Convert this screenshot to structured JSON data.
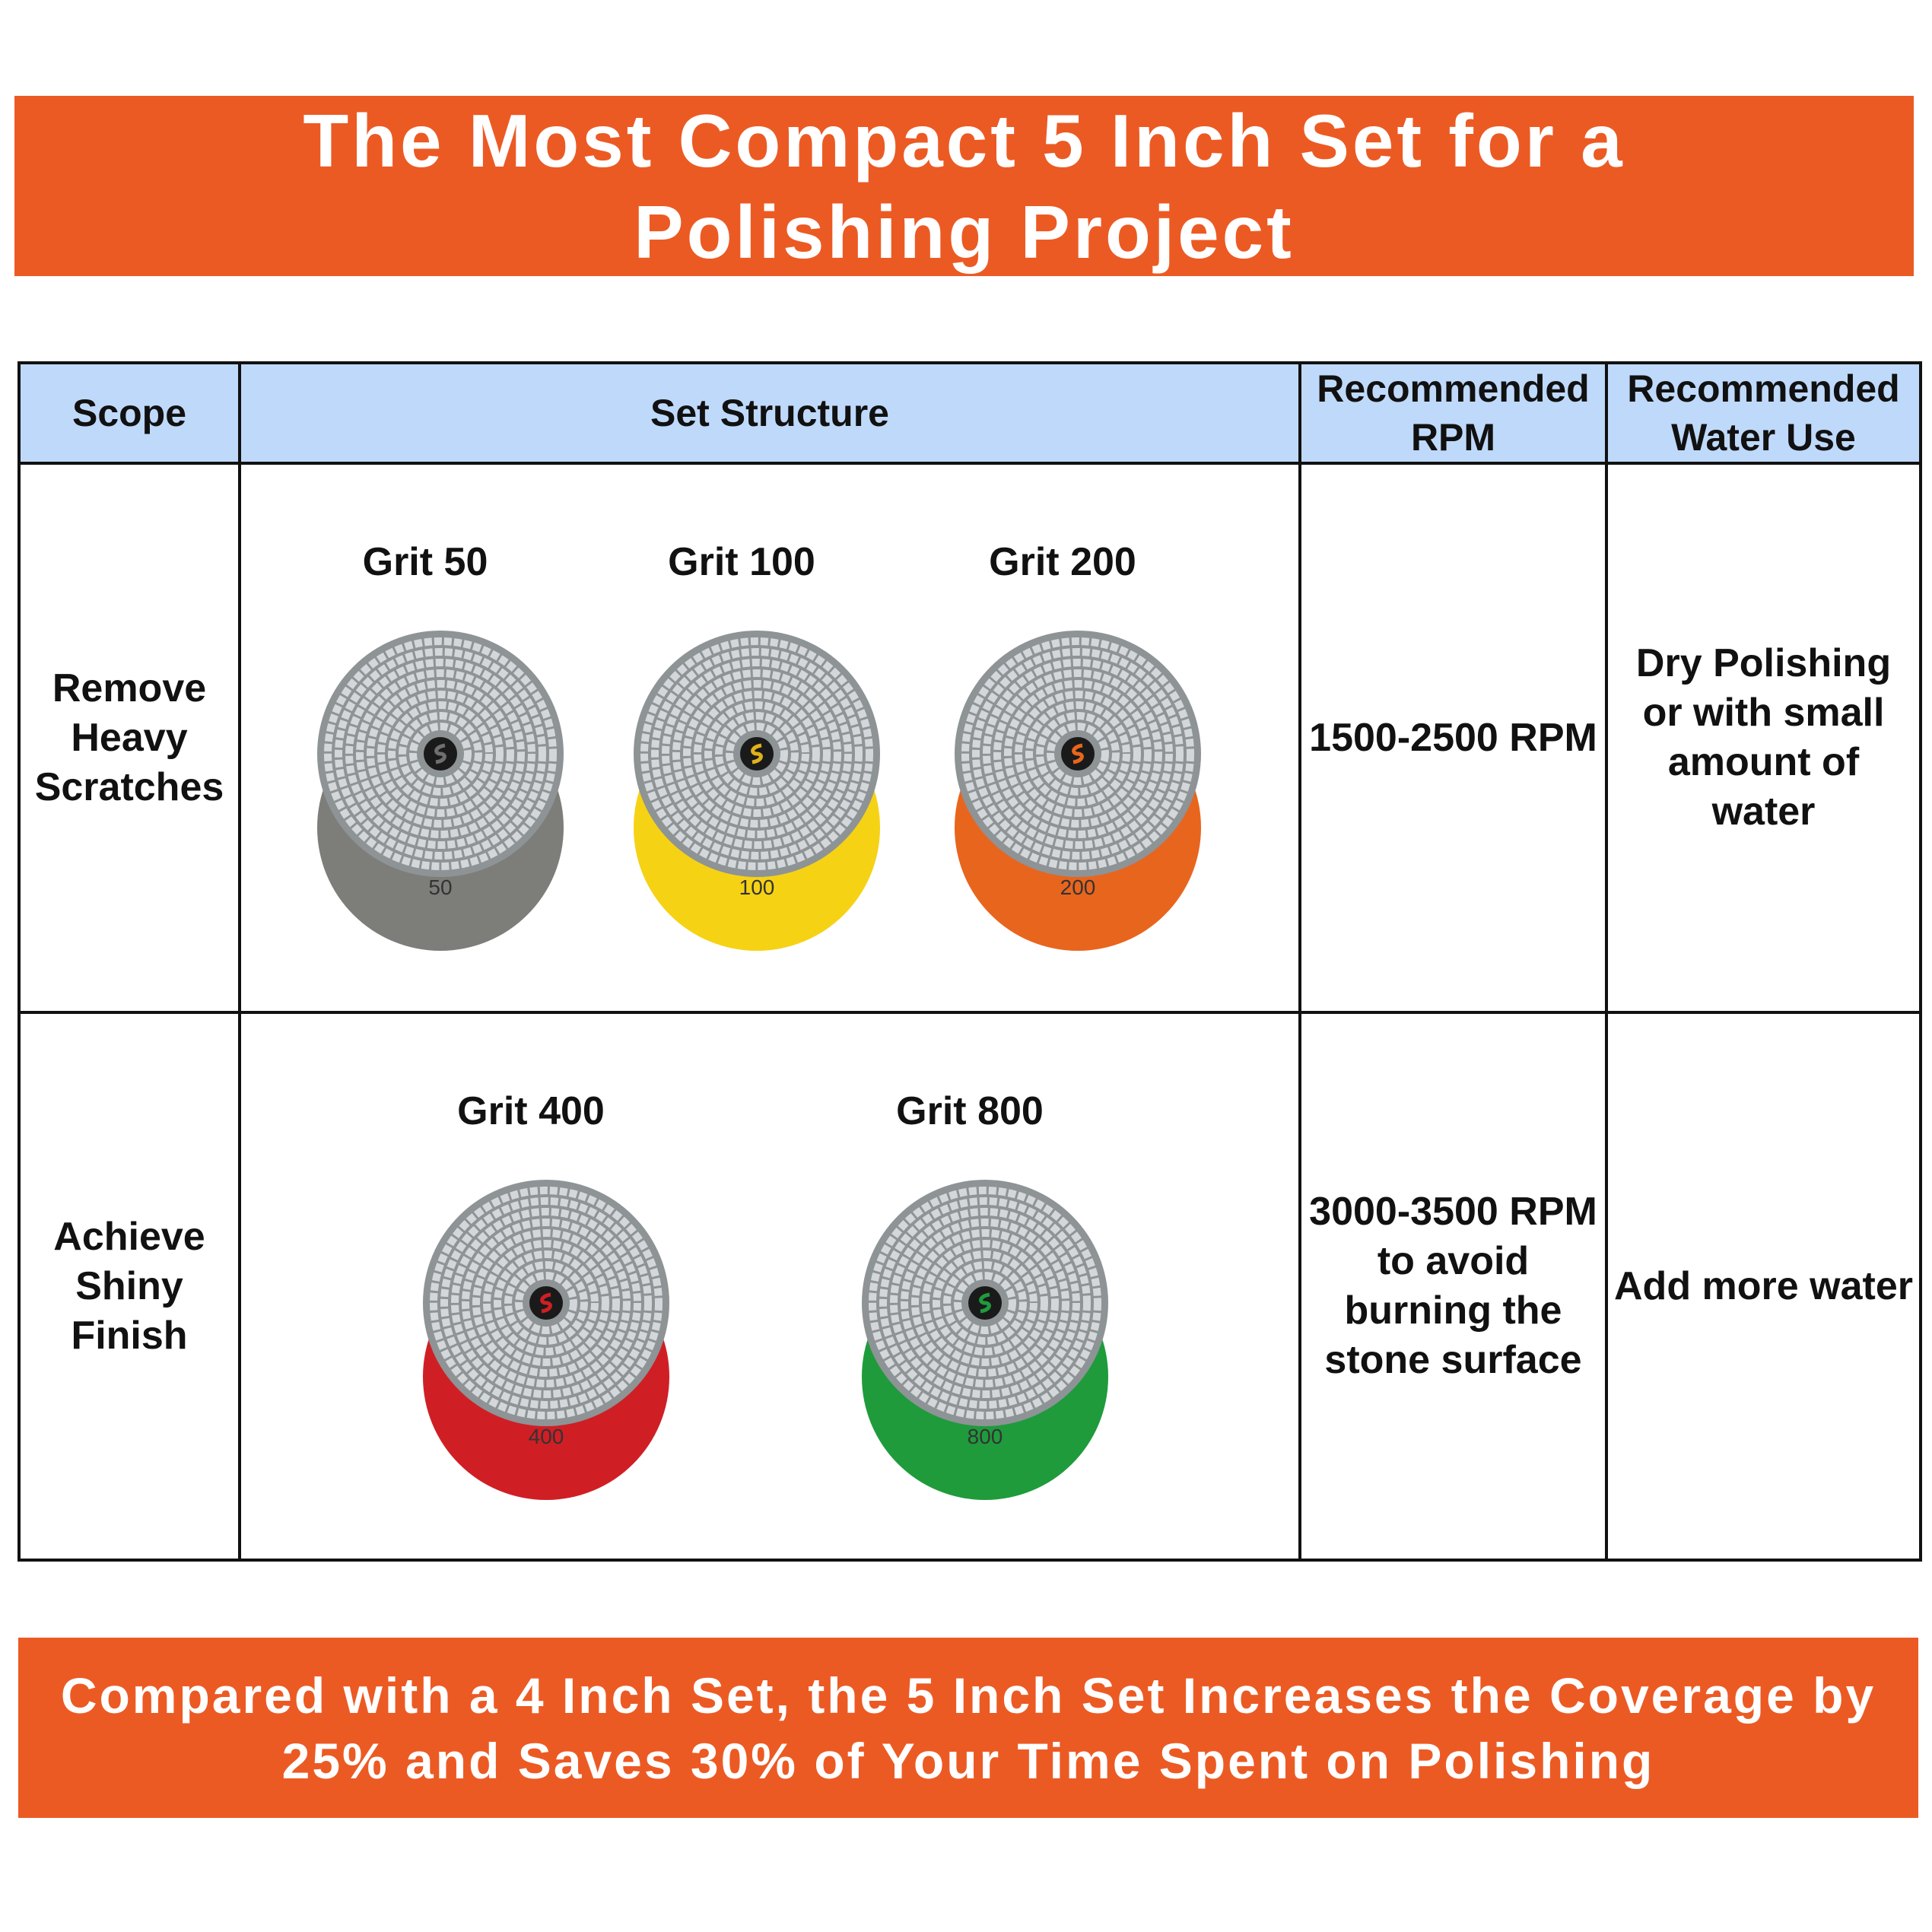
{
  "header": {
    "title": "The Most Compact 5 Inch Set for a Polishing Project"
  },
  "table": {
    "columns": [
      "Scope",
      "Set Structure",
      "Recommended RPM",
      "Recommended Water Use"
    ],
    "rows": [
      {
        "scope": "Remove Heavy Scratches",
        "pads": [
          {
            "label": "Grit 50",
            "number": "50",
            "color": "#7d7d7a",
            "hub": "#6f6f6f"
          },
          {
            "label": "Grit 100",
            "number": "100",
            "color": "#f6d215",
            "hub": "#e0b21a"
          },
          {
            "label": "Grit 200",
            "number": "200",
            "color": "#e8651e",
            "hub": "#e8651e"
          }
        ],
        "rpm": "1500-2500 RPM",
        "water": "Dry Polishing or with small amount of water"
      },
      {
        "scope": "Achieve Shiny Finish",
        "pads": [
          {
            "label": "Grit 400",
            "number": "400",
            "color": "#cf1f25",
            "hub": "#cf1f25"
          },
          {
            "label": "Grit 800",
            "number": "800",
            "color": "#1f9b3c",
            "hub": "#1f9b3c"
          }
        ],
        "rpm": "3000-3500 RPM to avoid burning the stone surface",
        "water": "Add more water"
      }
    ]
  },
  "footer": {
    "text": "Compared with a 4 Inch Set, the 5 Inch Set Increases the Coverage by 25% and Saves 30% of Your Time Spent on Polishing"
  }
}
